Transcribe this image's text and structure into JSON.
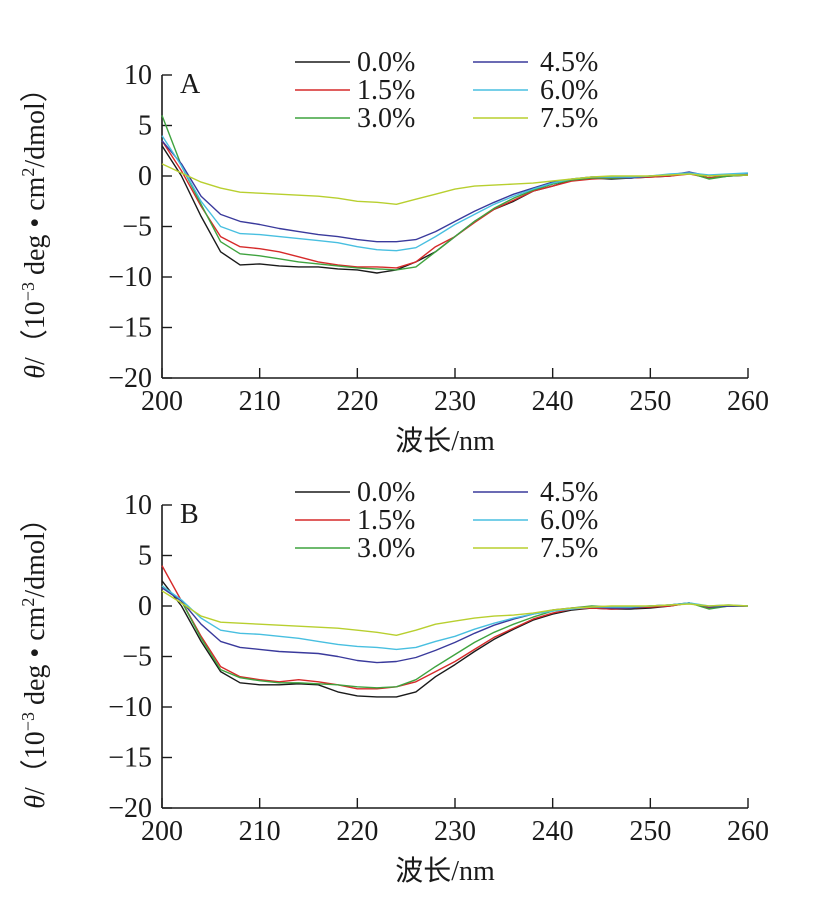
{
  "chart_data": [
    {
      "type": "line",
      "panel_label": "A",
      "xlabel": "波长/nm",
      "ylabel": "θ/（10⁻³ deg • cm²/dmol）",
      "ylabel_theta": "θ",
      "ylabel_rest": "/（10",
      "ylabel_exp": "−3",
      "ylabel_mid": " deg • cm",
      "ylabel_sq": "2",
      "ylabel_end": "/dmol）",
      "xlim": [
        200,
        260
      ],
      "ylim": [
        -20,
        10
      ],
      "xticks": [
        200,
        210,
        220,
        230,
        240,
        250,
        260
      ],
      "yticks": [
        10,
        5,
        0,
        -5,
        -10,
        -15,
        -20
      ],
      "ytick_labels": [
        "10",
        "5",
        "0",
        "−5",
        "−10",
        "−15",
        "−20"
      ],
      "legend": "top, two columns",
      "grid": false,
      "x": [
        200,
        202,
        204,
        206,
        208,
        210,
        212,
        214,
        216,
        218,
        220,
        222,
        224,
        226,
        228,
        230,
        232,
        234,
        236,
        238,
        240,
        242,
        244,
        246,
        248,
        250,
        252,
        254,
        256,
        258,
        260
      ],
      "series": [
        {
          "name": "0.0%",
          "color": "#1a1a1a",
          "values": [
            3.0,
            0.0,
            -4.0,
            -7.5,
            -8.8,
            -8.7,
            -8.9,
            -9.0,
            -9.0,
            -9.2,
            -9.3,
            -9.6,
            -9.3,
            -8.5,
            -7.5,
            -6.0,
            -4.5,
            -3.3,
            -2.5,
            -1.5,
            -1.0,
            -0.4,
            -0.2,
            -0.3,
            -0.2,
            -0.1,
            0.0,
            0.3,
            -0.2,
            0.0,
            0.1
          ]
        },
        {
          "name": "1.5%",
          "color": "#d62a2a",
          "values": [
            3.5,
            0.5,
            -3.0,
            -6.0,
            -7.0,
            -7.2,
            -7.5,
            -8.0,
            -8.5,
            -8.8,
            -9.0,
            -9.0,
            -9.1,
            -8.5,
            -7.0,
            -6.0,
            -4.6,
            -3.3,
            -2.4,
            -1.5,
            -1.0,
            -0.5,
            -0.3,
            -0.2,
            -0.2,
            -0.1,
            0.0,
            0.2,
            -0.2,
            0.0,
            0.1
          ]
        },
        {
          "name": "3.0%",
          "color": "#3fa33f",
          "values": [
            6.0,
            1.0,
            -2.8,
            -6.5,
            -7.7,
            -7.9,
            -8.2,
            -8.5,
            -8.7,
            -8.9,
            -9.1,
            -9.2,
            -9.3,
            -9.0,
            -7.5,
            -6.0,
            -4.5,
            -3.2,
            -2.2,
            -1.4,
            -0.8,
            -0.4,
            -0.2,
            -0.2,
            -0.2,
            0.0,
            0.1,
            0.3,
            -0.3,
            0.0,
            0.1
          ]
        },
        {
          "name": "4.5%",
          "color": "#3a3a9c",
          "values": [
            3.5,
            1.2,
            -2.0,
            -3.8,
            -4.5,
            -4.8,
            -5.2,
            -5.5,
            -5.8,
            -6.0,
            -6.3,
            -6.5,
            -6.5,
            -6.3,
            -5.5,
            -4.5,
            -3.5,
            -2.6,
            -1.8,
            -1.2,
            -0.6,
            -0.3,
            -0.1,
            -0.1,
            -0.2,
            0.0,
            0.1,
            0.4,
            0.0,
            0.1,
            0.2
          ]
        },
        {
          "name": "6.0%",
          "color": "#48bfe0",
          "values": [
            4.0,
            1.0,
            -2.5,
            -5.0,
            -5.7,
            -5.8,
            -6.0,
            -6.2,
            -6.4,
            -6.6,
            -7.0,
            -7.3,
            -7.4,
            -7.1,
            -6.0,
            -4.8,
            -3.8,
            -2.8,
            -2.0,
            -1.3,
            -0.7,
            -0.3,
            -0.1,
            -0.1,
            -0.1,
            0.0,
            0.2,
            0.3,
            0.1,
            0.2,
            0.3
          ]
        },
        {
          "name": "7.5%",
          "color": "#b8cf2f",
          "values": [
            1.2,
            0.3,
            -0.6,
            -1.2,
            -1.6,
            -1.7,
            -1.8,
            -1.9,
            -2.0,
            -2.2,
            -2.5,
            -2.6,
            -2.8,
            -2.3,
            -1.8,
            -1.3,
            -1.0,
            -0.9,
            -0.8,
            -0.7,
            -0.5,
            -0.3,
            -0.1,
            0.0,
            0.0,
            0.0,
            0.1,
            0.2,
            0.0,
            0.1,
            0.1
          ]
        }
      ]
    },
    {
      "type": "line",
      "panel_label": "B",
      "xlabel": "波长/nm",
      "ylabel": "θ/（10⁻³ deg • cm²/dmol）",
      "ylabel_theta": "θ",
      "ylabel_rest": "/（10",
      "ylabel_exp": "−3",
      "ylabel_mid": " deg • cm",
      "ylabel_sq": "2",
      "ylabel_end": "/dmol）",
      "xlim": [
        200,
        260
      ],
      "ylim": [
        -20,
        10
      ],
      "xticks": [
        200,
        210,
        220,
        230,
        240,
        250,
        260
      ],
      "yticks": [
        10,
        5,
        0,
        -5,
        -10,
        -15,
        -20
      ],
      "ytick_labels": [
        "10",
        "5",
        "0",
        "−5",
        "−10",
        "−15",
        "−20"
      ],
      "legend": "top, two columns",
      "grid": false,
      "x": [
        200,
        202,
        204,
        206,
        208,
        210,
        212,
        214,
        216,
        218,
        220,
        222,
        224,
        226,
        228,
        230,
        232,
        234,
        236,
        238,
        240,
        242,
        244,
        246,
        248,
        250,
        252,
        254,
        256,
        258,
        260
      ],
      "series": [
        {
          "name": "0.0%",
          "color": "#1a1a1a",
          "values": [
            2.5,
            0.0,
            -3.5,
            -6.5,
            -7.6,
            -7.8,
            -7.8,
            -7.7,
            -7.8,
            -8.5,
            -8.9,
            -9.0,
            -9.0,
            -8.5,
            -7.0,
            -5.8,
            -4.5,
            -3.3,
            -2.3,
            -1.4,
            -0.8,
            -0.4,
            -0.2,
            -0.3,
            -0.3,
            -0.2,
            0.0,
            0.3,
            -0.1,
            0.0,
            0.0
          ]
        },
        {
          "name": "1.5%",
          "color": "#d62a2a",
          "values": [
            4.0,
            0.5,
            -3.0,
            -6.0,
            -7.0,
            -7.3,
            -7.5,
            -7.3,
            -7.5,
            -7.8,
            -8.2,
            -8.2,
            -8.0,
            -7.5,
            -6.5,
            -5.5,
            -4.3,
            -3.1,
            -2.2,
            -1.3,
            -0.7,
            -0.3,
            -0.2,
            -0.3,
            -0.2,
            -0.1,
            0.0,
            0.3,
            -0.2,
            0.0,
            0.0
          ]
        },
        {
          "name": "3.0%",
          "color": "#3fa33f",
          "values": [
            2.0,
            0.5,
            -3.2,
            -6.3,
            -7.1,
            -7.4,
            -7.6,
            -7.6,
            -7.7,
            -7.8,
            -8.0,
            -8.1,
            -8.0,
            -7.3,
            -6.0,
            -4.8,
            -3.6,
            -2.6,
            -1.8,
            -1.1,
            -0.5,
            -0.2,
            0.0,
            -0.1,
            -0.1,
            0.0,
            0.1,
            0.3,
            -0.3,
            0.0,
            0.0
          ]
        },
        {
          "name": "4.5%",
          "color": "#3a3a9c",
          "values": [
            1.8,
            0.5,
            -1.8,
            -3.5,
            -4.1,
            -4.3,
            -4.5,
            -4.6,
            -4.7,
            -5.0,
            -5.4,
            -5.6,
            -5.5,
            -5.1,
            -4.4,
            -3.6,
            -2.7,
            -1.9,
            -1.3,
            -0.8,
            -0.4,
            -0.2,
            -0.1,
            -0.2,
            -0.2,
            0.0,
            0.1,
            0.3,
            -0.1,
            0.0,
            0.0
          ]
        },
        {
          "name": "6.0%",
          "color": "#48bfe0",
          "values": [
            2.0,
            0.6,
            -1.2,
            -2.4,
            -2.7,
            -2.8,
            -3.0,
            -3.2,
            -3.5,
            -3.8,
            -4.0,
            -4.1,
            -4.3,
            -4.1,
            -3.5,
            -3.0,
            -2.3,
            -1.7,
            -1.2,
            -0.8,
            -0.5,
            -0.3,
            -0.1,
            -0.1,
            -0.1,
            0.0,
            0.1,
            0.3,
            0.0,
            0.1,
            0.0
          ]
        },
        {
          "name": "7.5%",
          "color": "#b8cf2f",
          "values": [
            1.5,
            0.3,
            -1.0,
            -1.6,
            -1.7,
            -1.8,
            -1.9,
            -2.0,
            -2.1,
            -2.2,
            -2.4,
            -2.6,
            -2.9,
            -2.4,
            -1.8,
            -1.5,
            -1.2,
            -1.0,
            -0.9,
            -0.7,
            -0.4,
            -0.2,
            -0.1,
            0.0,
            0.0,
            0.0,
            0.1,
            0.2,
            0.0,
            0.1,
            0.0
          ]
        }
      ]
    }
  ]
}
